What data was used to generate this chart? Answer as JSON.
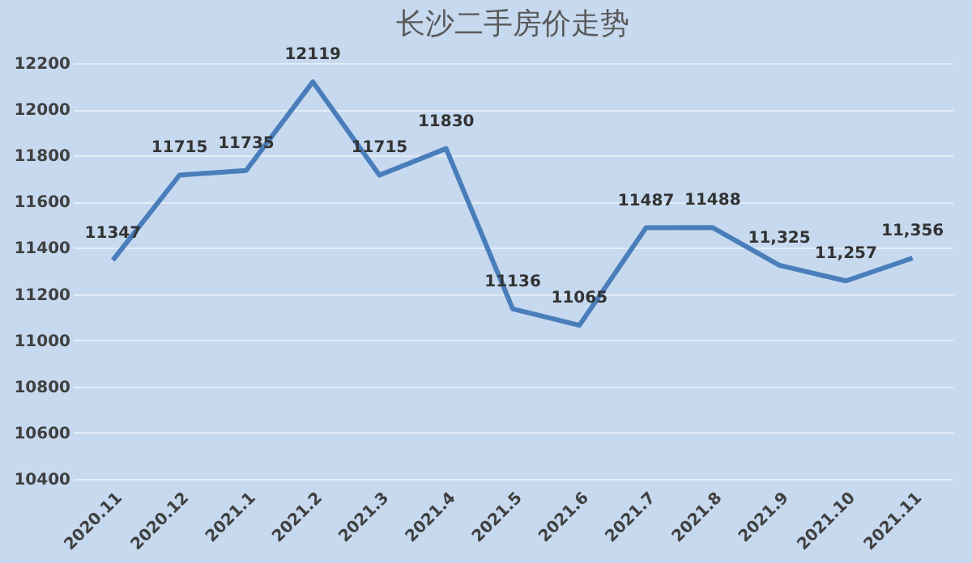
{
  "chart_data": {
    "type": "line",
    "title": "长沙二手房价走势",
    "categories": [
      "2020.11",
      "2020.12",
      "2021.1",
      "2021.2",
      "2021.3",
      "2021.4",
      "2021.5",
      "2021.6",
      "2021.7",
      "2021.8",
      "2021.9",
      "2021.10",
      "2021.11"
    ],
    "series": [
      {
        "color": "#4a7ebb",
        "values": [
          11347,
          11715,
          11735,
          12119,
          11715,
          11830,
          11136,
          11065,
          11487,
          11488,
          11325,
          11257,
          11356
        ],
        "value_labels": [
          "11347",
          "11715",
          "11735",
          "12119",
          "11715",
          "11830",
          "11136",
          "11065",
          "11487",
          "11488",
          "11,325",
          "11,257",
          "11,356"
        ]
      }
    ],
    "ylim": [
      10400,
      12200
    ],
    "yticks": [
      10400,
      10600,
      10800,
      11000,
      11200,
      11400,
      11600,
      11800,
      12000,
      12200
    ],
    "grid": "y",
    "marker": "none",
    "line_style": "solid"
  }
}
